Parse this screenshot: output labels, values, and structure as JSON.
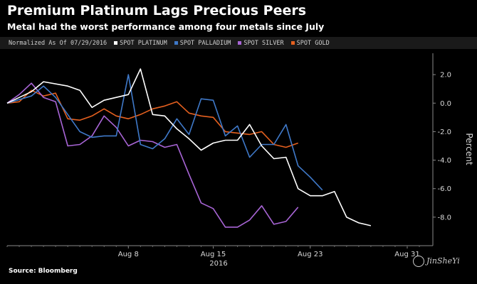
{
  "chart_data": {
    "type": "line",
    "title": "Premium Platinum Lags Precious Peers",
    "subtitle": "Metal had the worst performance among four metals since July",
    "normalized_note": "Normalized As Of 07/29/2016",
    "ylabel": "Percent",
    "xlabel": "2016",
    "ylim": [
      -10,
      3.5
    ],
    "yticks": [
      2.0,
      0.0,
      -2.0,
      -4.0,
      -6.0,
      -8.0
    ],
    "ytick_labels": [
      "2.0",
      "0.0",
      "-2.0",
      "-4.0",
      "-6.0",
      "-8.0"
    ],
    "x": [
      "07/29",
      "07/30",
      "07/31",
      "08/01",
      "08/02",
      "08/03",
      "08/04",
      "08/05",
      "08/06",
      "08/07",
      "08/08",
      "08/09",
      "08/10",
      "08/11",
      "08/12",
      "08/13",
      "08/14",
      "08/15",
      "08/16",
      "08/17",
      "08/18",
      "08/19",
      "08/20",
      "08/21",
      "08/22",
      "08/23",
      "08/24",
      "08/25",
      "08/26",
      "08/27",
      "08/28",
      "08/29",
      "08/30",
      "08/31",
      "09/01"
    ],
    "xticks": [
      {
        "label": "Aug 8",
        "index": 10
      },
      {
        "label": "Aug 15",
        "index": 17
      },
      {
        "label": "Aug 23",
        "index": 25
      },
      {
        "label": "Aug 31",
        "index": 33
      }
    ],
    "legend_position": "top",
    "grid": false,
    "series": [
      {
        "name": "SPOT PLATINUM",
        "color": "#ffffff",
        "points": [
          [
            0,
            0.0
          ],
          [
            2,
            0.8
          ],
          [
            3,
            1.5
          ],
          [
            5,
            1.2
          ],
          [
            6,
            0.9
          ],
          [
            7,
            -0.3
          ],
          [
            8,
            0.2
          ],
          [
            10,
            0.6
          ],
          [
            11,
            2.4
          ],
          [
            12,
            -0.8
          ],
          [
            13,
            -0.9
          ],
          [
            14,
            -1.8
          ],
          [
            15,
            -2.5
          ],
          [
            16,
            -3.3
          ],
          [
            17,
            -2.8
          ],
          [
            18,
            -2.6
          ],
          [
            19,
            -2.6
          ],
          [
            20,
            -1.5
          ],
          [
            21,
            -3.0
          ],
          [
            22,
            -3.9
          ],
          [
            23,
            -3.8
          ],
          [
            24,
            -6.0
          ],
          [
            25,
            -6.5
          ],
          [
            26,
            -6.5
          ],
          [
            27,
            -6.2
          ],
          [
            28,
            -8.0
          ],
          [
            29,
            -8.4
          ],
          [
            30,
            -8.6
          ]
        ]
      },
      {
        "name": "SPOT PALLADIUM",
        "color": "#3f79c9",
        "points": [
          [
            0,
            0.0
          ],
          [
            2,
            0.5
          ],
          [
            3,
            1.2
          ],
          [
            4,
            0.4
          ],
          [
            5,
            -0.8
          ],
          [
            6,
            -2.0
          ],
          [
            7,
            -2.4
          ],
          [
            8,
            -2.3
          ],
          [
            9,
            -2.3
          ],
          [
            10,
            2.0
          ],
          [
            11,
            -2.9
          ],
          [
            12,
            -3.2
          ],
          [
            13,
            -2.5
          ],
          [
            14,
            -1.1
          ],
          [
            15,
            -2.2
          ],
          [
            16,
            0.3
          ],
          [
            17,
            0.2
          ],
          [
            18,
            -2.3
          ],
          [
            19,
            -1.6
          ],
          [
            20,
            -3.8
          ],
          [
            21,
            -2.9
          ],
          [
            22,
            -2.9
          ],
          [
            23,
            -1.5
          ],
          [
            24,
            -4.4
          ],
          [
            25,
            -5.2
          ],
          [
            26,
            -6.1
          ]
        ]
      },
      {
        "name": "SPOT SILVER",
        "color": "#a865d6",
        "points": [
          [
            0,
            0.0
          ],
          [
            1,
            0.6
          ],
          [
            2,
            1.4
          ],
          [
            3,
            0.4
          ],
          [
            4,
            0.1
          ],
          [
            5,
            -3.0
          ],
          [
            6,
            -2.9
          ],
          [
            7,
            -2.3
          ],
          [
            8,
            -0.9
          ],
          [
            9,
            -1.7
          ],
          [
            10,
            -3.0
          ],
          [
            11,
            -2.6
          ],
          [
            12,
            -2.7
          ],
          [
            13,
            -3.1
          ],
          [
            14,
            -2.9
          ],
          [
            15,
            -5.0
          ],
          [
            16,
            -7.0
          ],
          [
            17,
            -7.4
          ],
          [
            18,
            -8.7
          ],
          [
            19,
            -8.7
          ],
          [
            20,
            -8.2
          ],
          [
            21,
            -7.2
          ],
          [
            22,
            -8.5
          ],
          [
            23,
            -8.3
          ],
          [
            24,
            -7.3
          ]
        ]
      },
      {
        "name": "SPOT GOLD",
        "color": "#e5601f",
        "points": [
          [
            0,
            0.0
          ],
          [
            1,
            0.1
          ],
          [
            2,
            0.9
          ],
          [
            3,
            0.5
          ],
          [
            4,
            0.7
          ],
          [
            5,
            -1.1
          ],
          [
            6,
            -1.2
          ],
          [
            7,
            -0.9
          ],
          [
            8,
            -0.4
          ],
          [
            9,
            -0.9
          ],
          [
            10,
            -1.1
          ],
          [
            11,
            -0.8
          ],
          [
            12,
            -0.4
          ],
          [
            13,
            -0.2
          ],
          [
            14,
            0.1
          ],
          [
            15,
            -0.7
          ],
          [
            16,
            -0.9
          ],
          [
            17,
            -1.0
          ],
          [
            18,
            -2.0
          ],
          [
            19,
            -2.1
          ],
          [
            20,
            -2.2
          ],
          [
            21,
            -2.0
          ],
          [
            22,
            -2.9
          ],
          [
            23,
            -3.1
          ],
          [
            24,
            -2.8
          ]
        ]
      }
    ]
  },
  "source_text": "Source: Bloomberg",
  "watermark_text": "JinSheYi"
}
